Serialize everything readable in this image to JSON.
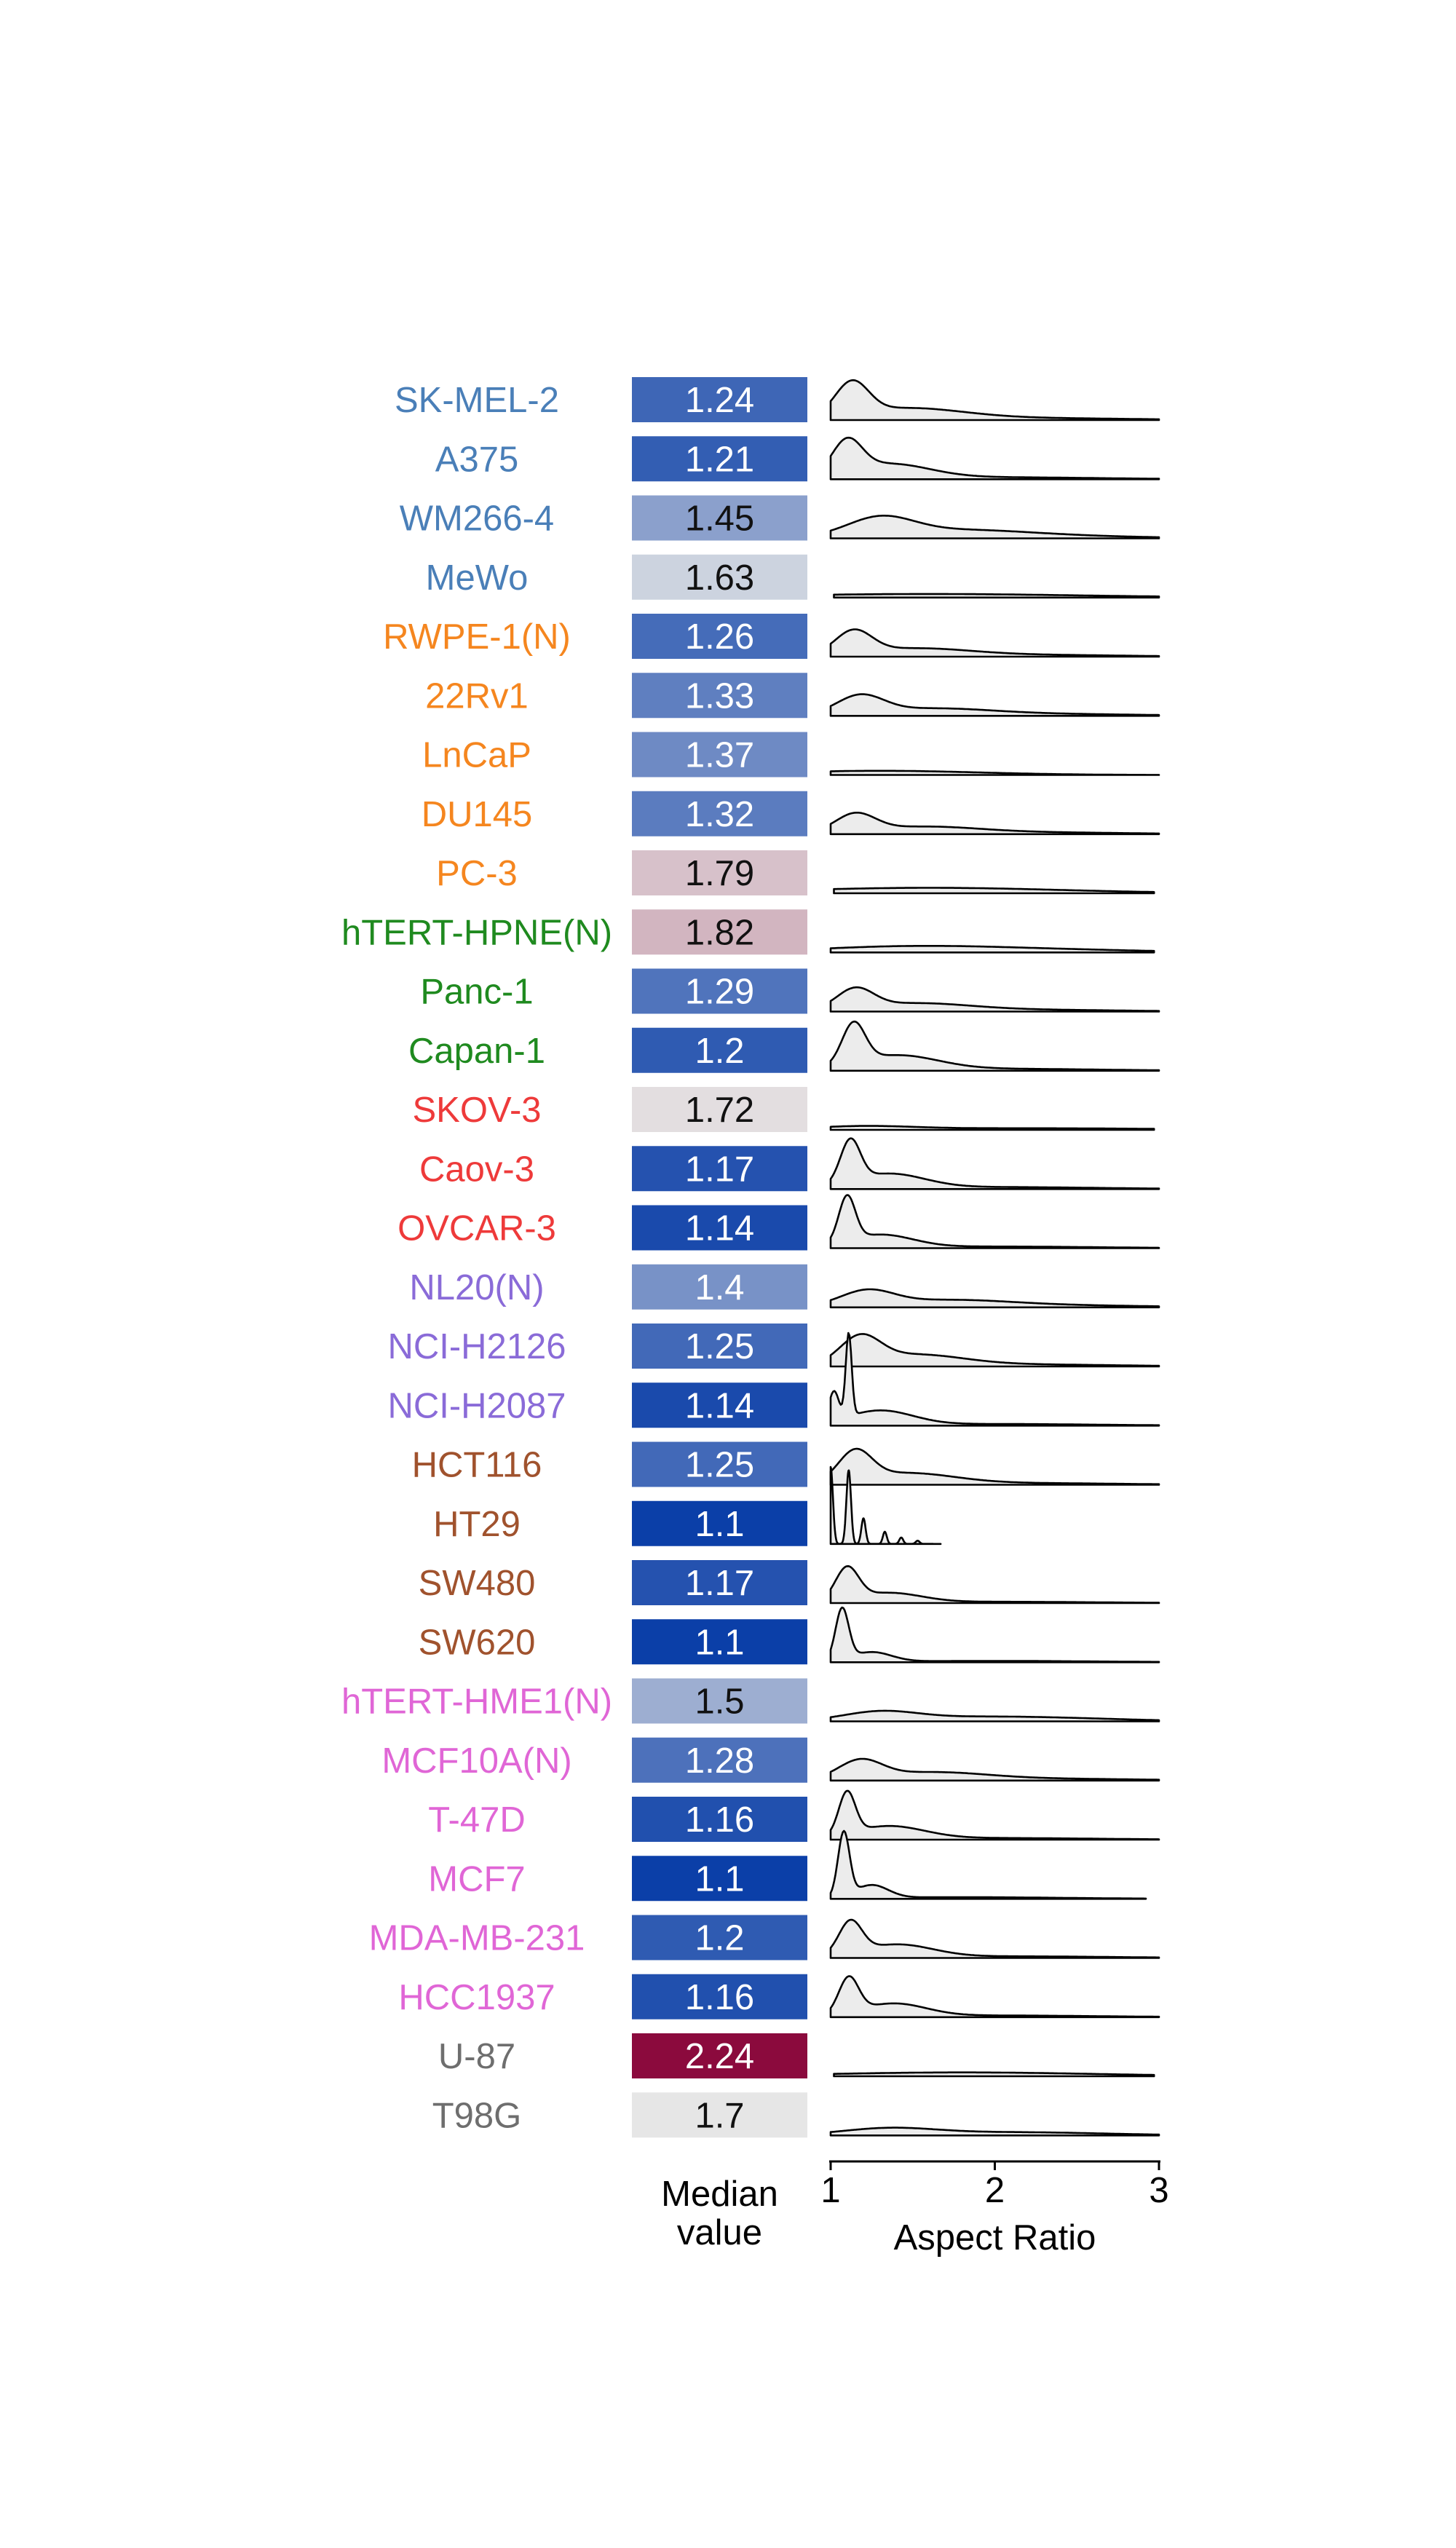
{
  "chart_data": {
    "type": "ridgeline",
    "median_column_label": [
      "Median",
      "value"
    ],
    "xlabel": "Aspect Ratio",
    "xlim": [
      1,
      3
    ],
    "xticks": [
      "1",
      "2",
      "3"
    ],
    "median_color_scale": {
      "low": 1.1,
      "mid": 1.7,
      "high": 2.24,
      "low_color": "#0b3fa8",
      "mid_color": "#e6e6e6",
      "high_color": "#8b0a3d"
    },
    "rows": [
      {
        "name": "SK-MEL-2",
        "median": "1.24",
        "label_color": "#4a7fb8",
        "x_end": 3.0,
        "peaks": [
          {
            "c": 1.13,
            "s": 0.1,
            "h": 1.0
          },
          {
            "c": 1.45,
            "s": 0.35,
            "h": 0.35
          },
          {
            "c": 2.2,
            "s": 0.6,
            "h": 0.06
          }
        ]
      },
      {
        "name": "A375",
        "median": "1.21",
        "label_color": "#4a7fb8",
        "x_end": 3.0,
        "peaks": [
          {
            "c": 1.1,
            "s": 0.09,
            "h": 1.0
          },
          {
            "c": 1.35,
            "s": 0.25,
            "h": 0.45
          },
          {
            "c": 2.0,
            "s": 0.6,
            "h": 0.06
          }
        ]
      },
      {
        "name": "WM266-4",
        "median": "1.45",
        "label_color": "#4a7fb8",
        "x_end": 3.0,
        "peaks": [
          {
            "c": 1.3,
            "s": 0.2,
            "h": 0.55
          },
          {
            "c": 1.75,
            "s": 0.45,
            "h": 0.25
          },
          {
            "c": 2.5,
            "s": 0.5,
            "h": 0.05
          }
        ]
      },
      {
        "name": "MeWo",
        "median": "1.63",
        "label_color": "#4a7fb8",
        "x_end": 3.0,
        "x_start": 1.02,
        "peaks": [
          {
            "c": 1.6,
            "s": 0.9,
            "h": 0.11
          }
        ]
      },
      {
        "name": "RWPE-1(N)",
        "median": "1.26",
        "label_color": "#f5861f",
        "x_end": 3.0,
        "peaks": [
          {
            "c": 1.14,
            "s": 0.11,
            "h": 0.7
          },
          {
            "c": 1.5,
            "s": 0.35,
            "h": 0.25
          },
          {
            "c": 2.3,
            "s": 0.5,
            "h": 0.05
          }
        ]
      },
      {
        "name": "22Rv1",
        "median": "1.33",
        "label_color": "#f5861f",
        "x_end": 3.0,
        "peaks": [
          {
            "c": 1.18,
            "s": 0.14,
            "h": 0.55
          },
          {
            "c": 1.6,
            "s": 0.38,
            "h": 0.22
          },
          {
            "c": 2.4,
            "s": 0.5,
            "h": 0.05
          }
        ]
      },
      {
        "name": "LnCaP",
        "median": "1.37",
        "label_color": "#f5861f",
        "x_end": 3.0,
        "peaks": [
          {
            "c": 1.3,
            "s": 0.6,
            "h": 0.13
          }
        ]
      },
      {
        "name": "DU145",
        "median": "1.32",
        "label_color": "#f5861f",
        "x_end": 3.0,
        "peaks": [
          {
            "c": 1.15,
            "s": 0.12,
            "h": 0.55
          },
          {
            "c": 1.55,
            "s": 0.35,
            "h": 0.22
          },
          {
            "c": 2.3,
            "s": 0.5,
            "h": 0.05
          }
        ]
      },
      {
        "name": "PC-3",
        "median": "1.79",
        "label_color": "#f5861f",
        "x_end": 2.97,
        "x_start": 1.02,
        "peaks": [
          {
            "c": 1.6,
            "s": 0.8,
            "h": 0.17
          }
        ]
      },
      {
        "name": "hTERT-HPNE(N)",
        "median": "1.82",
        "label_color": "#1f8a1f",
        "x_end": 2.97,
        "peaks": [
          {
            "c": 1.45,
            "s": 0.55,
            "h": 0.17
          },
          {
            "c": 2.3,
            "s": 0.6,
            "h": 0.08
          }
        ]
      },
      {
        "name": "Panc-1",
        "median": "1.29",
        "label_color": "#1f8a1f",
        "x_end": 3.0,
        "peaks": [
          {
            "c": 1.15,
            "s": 0.11,
            "h": 0.6
          },
          {
            "c": 1.5,
            "s": 0.35,
            "h": 0.25
          },
          {
            "c": 2.3,
            "s": 0.5,
            "h": 0.05
          }
        ]
      },
      {
        "name": "Capan-1",
        "median": "1.2",
        "label_color": "#1f8a1f",
        "x_end": 3.0,
        "peaks": [
          {
            "c": 1.14,
            "s": 0.07,
            "h": 1.25
          },
          {
            "c": 1.4,
            "s": 0.25,
            "h": 0.45
          },
          {
            "c": 2.0,
            "s": 0.6,
            "h": 0.06
          }
        ]
      },
      {
        "name": "SKOV-3",
        "median": "1.72",
        "label_color": "#ee3a3a",
        "x_end": 2.97,
        "peaks": [
          {
            "c": 1.2,
            "s": 0.3,
            "h": 0.1
          },
          {
            "c": 2.2,
            "s": 0.8,
            "h": 0.05
          }
        ]
      },
      {
        "name": "Caov-3",
        "median": "1.17",
        "label_color": "#ee3a3a",
        "x_end": 3.0,
        "peaks": [
          {
            "c": 1.12,
            "s": 0.06,
            "h": 1.3
          },
          {
            "c": 1.35,
            "s": 0.22,
            "h": 0.45
          },
          {
            "c": 2.0,
            "s": 0.6,
            "h": 0.06
          }
        ]
      },
      {
        "name": "OVCAR-3",
        "median": "1.14",
        "label_color": "#ee3a3a",
        "x_end": 3.0,
        "peaks": [
          {
            "c": 1.1,
            "s": 0.05,
            "h": 1.4
          },
          {
            "c": 1.3,
            "s": 0.2,
            "h": 0.4
          },
          {
            "c": 2.0,
            "s": 0.6,
            "h": 0.05
          }
        ]
      },
      {
        "name": "NL20(N)",
        "median": "1.4",
        "label_color": "#8a6bd8",
        "x_end": 3.0,
        "peaks": [
          {
            "c": 1.22,
            "s": 0.16,
            "h": 0.45
          },
          {
            "c": 1.7,
            "s": 0.4,
            "h": 0.22
          },
          {
            "c": 2.5,
            "s": 0.5,
            "h": 0.05
          }
        ]
      },
      {
        "name": "NCI-H2126",
        "median": "1.25",
        "label_color": "#8a6bd8",
        "x_end": 3.0,
        "peaks": [
          {
            "c": 1.18,
            "s": 0.12,
            "h": 0.8
          },
          {
            "c": 1.5,
            "s": 0.3,
            "h": 0.35
          },
          {
            "c": 2.2,
            "s": 0.55,
            "h": 0.06
          }
        ]
      },
      {
        "name": "NCI-H2087",
        "median": "1.14",
        "label_color": "#8a6bd8",
        "x_end": 3.0,
        "peaks": [
          {
            "c": 1.02,
            "s": 0.03,
            "h": 0.9
          },
          {
            "c": 1.11,
            "s": 0.018,
            "h": 2.6
          },
          {
            "c": 1.3,
            "s": 0.2,
            "h": 0.45
          },
          {
            "c": 2.0,
            "s": 0.6,
            "h": 0.05
          }
        ]
      },
      {
        "name": "HCT116",
        "median": "1.25",
        "label_color": "#a0522d",
        "x_end": 3.0,
        "peaks": [
          {
            "c": 1.15,
            "s": 0.1,
            "h": 0.9
          },
          {
            "c": 1.45,
            "s": 0.3,
            "h": 0.35
          },
          {
            "c": 2.2,
            "s": 0.55,
            "h": 0.05
          }
        ]
      },
      {
        "name": "HT29",
        "median": "1.1",
        "label_color": "#a0522d",
        "x_end": 1.67,
        "peaks": [
          {
            "c": 1.0,
            "s": 0.014,
            "h": 2.4
          },
          {
            "c": 1.11,
            "s": 0.014,
            "h": 2.3
          },
          {
            "c": 1.2,
            "s": 0.013,
            "h": 0.8
          },
          {
            "c": 1.33,
            "s": 0.012,
            "h": 0.38
          },
          {
            "c": 1.43,
            "s": 0.012,
            "h": 0.2
          },
          {
            "c": 1.53,
            "s": 0.012,
            "h": 0.1
          }
        ]
      },
      {
        "name": "SW480",
        "median": "1.17",
        "label_color": "#a0522d",
        "x_end": 3.0,
        "peaks": [
          {
            "c": 1.1,
            "s": 0.07,
            "h": 1.0
          },
          {
            "c": 1.35,
            "s": 0.2,
            "h": 0.3
          },
          {
            "c": 2.0,
            "s": 0.6,
            "h": 0.04
          }
        ]
      },
      {
        "name": "SW620",
        "median": "1.1",
        "label_color": "#a0522d",
        "x_end": 3.0,
        "peaks": [
          {
            "c": 1.07,
            "s": 0.04,
            "h": 1.6
          },
          {
            "c": 1.25,
            "s": 0.12,
            "h": 0.3
          },
          {
            "c": 2.0,
            "s": 0.6,
            "h": 0.04
          }
        ]
      },
      {
        "name": "hTERT-HME1(N)",
        "median": "1.5",
        "label_color": "#e066d6",
        "x_end": 3.0,
        "peaks": [
          {
            "c": 1.3,
            "s": 0.22,
            "h": 0.26
          },
          {
            "c": 1.9,
            "s": 0.5,
            "h": 0.14
          },
          {
            "c": 2.6,
            "s": 0.4,
            "h": 0.04
          }
        ]
      },
      {
        "name": "MCF10A(N)",
        "median": "1.28",
        "label_color": "#e066d6",
        "x_end": 3.0,
        "peaks": [
          {
            "c": 1.18,
            "s": 0.13,
            "h": 0.55
          },
          {
            "c": 1.6,
            "s": 0.35,
            "h": 0.25
          },
          {
            "c": 2.4,
            "s": 0.5,
            "h": 0.05
          }
        ]
      },
      {
        "name": "T-47D",
        "median": "1.16",
        "label_color": "#e066d6",
        "x_end": 3.0,
        "peaks": [
          {
            "c": 1.1,
            "s": 0.05,
            "h": 1.3
          },
          {
            "c": 1.35,
            "s": 0.22,
            "h": 0.4
          },
          {
            "c": 2.0,
            "s": 0.6,
            "h": 0.05
          }
        ]
      },
      {
        "name": "MCF7",
        "median": "1.1",
        "label_color": "#e066d6",
        "x_end": 2.92,
        "peaks": [
          {
            "c": 1.08,
            "s": 0.035,
            "h": 2.0
          },
          {
            "c": 1.25,
            "s": 0.1,
            "h": 0.4
          },
          {
            "c": 1.8,
            "s": 0.6,
            "h": 0.05
          }
        ]
      },
      {
        "name": "MDA-MB-231",
        "median": "1.2",
        "label_color": "#e066d6",
        "x_end": 3.0,
        "peaks": [
          {
            "c": 1.12,
            "s": 0.07,
            "h": 1.0
          },
          {
            "c": 1.4,
            "s": 0.22,
            "h": 0.4
          },
          {
            "c": 2.1,
            "s": 0.6,
            "h": 0.05
          }
        ]
      },
      {
        "name": "HCC1937",
        "median": "1.16",
        "label_color": "#e066d6",
        "x_end": 3.0,
        "peaks": [
          {
            "c": 1.11,
            "s": 0.06,
            "h": 1.1
          },
          {
            "c": 1.38,
            "s": 0.2,
            "h": 0.4
          },
          {
            "c": 2.0,
            "s": 0.6,
            "h": 0.05
          }
        ]
      },
      {
        "name": "U-87",
        "median": "2.24",
        "label_color": "#6e6e6e",
        "x_end": 2.97,
        "x_start": 1.02,
        "peaks": [
          {
            "c": 1.8,
            "s": 0.8,
            "h": 0.12
          }
        ]
      },
      {
        "name": "T98G",
        "median": "1.7",
        "label_color": "#6e6e6e",
        "x_end": 3.0,
        "peaks": [
          {
            "c": 1.35,
            "s": 0.28,
            "h": 0.2
          },
          {
            "c": 2.1,
            "s": 0.55,
            "h": 0.1
          }
        ]
      }
    ]
  }
}
